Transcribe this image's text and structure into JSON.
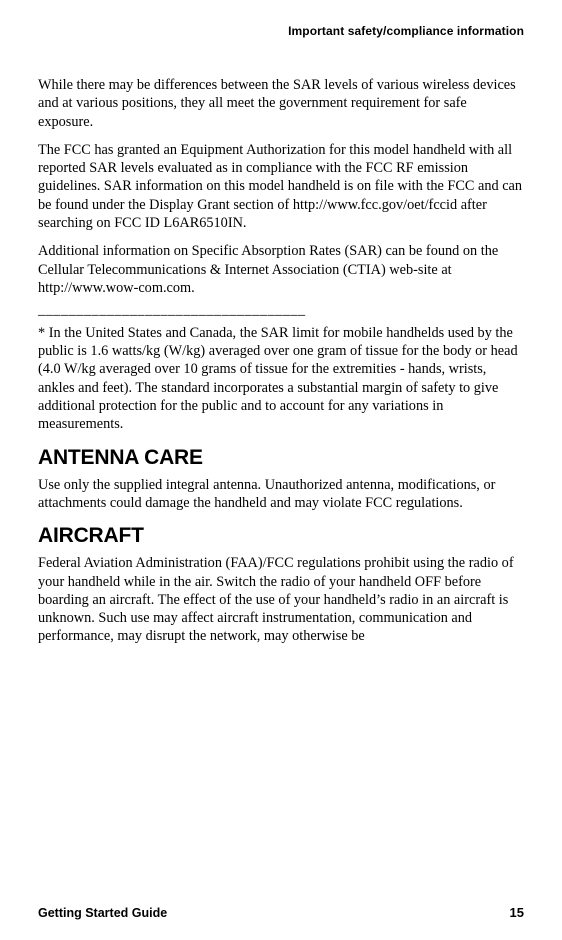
{
  "header": "Important safety/compliance information",
  "p1": "While there may be differences between the SAR levels of various wireless devices and at various positions, they all meet the government requirement for safe exposure.",
  "p2": "The FCC has granted an Equipment Authorization for this model handheld with all reported SAR levels evaluated as in compliance with the FCC RF emission guidelines. SAR information on this model handheld is on file with the FCC and can be found under the Display Grant section of http://www.fcc.gov/oet/fccid after searching on FCC ID L6AR6510IN.",
  "p3": "Additional information on Specific Absorption Rates (SAR) can be found on the Cellular Telecommunications & Internet Association (CTIA) web-site at http://www.wow-com.com.",
  "separator": "___________________________________",
  "p4": "* In the United States and Canada, the SAR limit for mobile handhelds used by the public is 1.6 watts/kg (W/kg) averaged over one gram of tissue for the body or head (4.0 W/kg averaged over 10 grams of tissue for the extremities - hands, wrists, ankles and feet). The standard incorporates a substantial margin of safety to give additional protection for the public and to account for any variations in measurements.",
  "h1": "ANTENNA CARE",
  "p5": "Use only the supplied integral antenna. Unauthorized antenna, modifications, or attachments could damage the handheld and may violate FCC regulations.",
  "h2": "AIRCRAFT",
  "p6": "Federal Aviation Administration (FAA)/FCC regulations prohibit using the radio of your handheld while in the air. Switch the radio of your handheld OFF before boarding an aircraft. The effect of the use of your handheld’s radio in an aircraft is unknown. Such use may affect aircraft instrumentation, communication and performance, may disrupt the network, may otherwise be",
  "footer_title": "Getting Started Guide",
  "footer_page": "15"
}
